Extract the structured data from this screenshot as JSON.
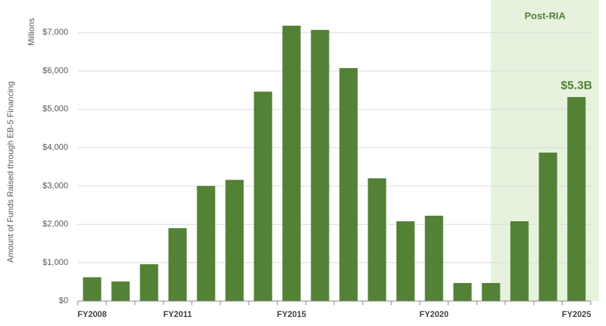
{
  "chart_data": {
    "type": "bar",
    "y_label": "Amount of Funds Raised through EB-5 Financing",
    "y_unit_label": "Millions",
    "highlight_label": "Post-RIA",
    "categories": [
      "FY2008",
      null,
      null,
      "FY2011",
      null,
      null,
      null,
      "FY2015",
      null,
      null,
      null,
      null,
      "FY2020",
      null,
      null,
      null,
      null,
      "FY2025"
    ],
    "values": [
      620,
      510,
      960,
      1900,
      3000,
      3160,
      5460,
      7180,
      7070,
      6075,
      3200,
      2080,
      2225,
      470,
      470,
      2080,
      3870,
      5320
    ],
    "value_labels": [
      null,
      null,
      null,
      null,
      null,
      null,
      null,
      null,
      null,
      null,
      null,
      null,
      null,
      null,
      null,
      null,
      null,
      "$5.3B"
    ],
    "color": "#538135",
    "highlight_color": "#e6f2dd",
    "ylim": [
      0,
      7850
    ],
    "yticks": [
      {
        "value": 0,
        "label": "$0"
      },
      {
        "value": 1000,
        "label": "$1,000"
      },
      {
        "value": 2000,
        "label": "$2,000"
      },
      {
        "value": 3000,
        "label": "$3,000"
      },
      {
        "value": 4000,
        "label": "$4,000"
      },
      {
        "value": 5000,
        "label": "$5,000"
      },
      {
        "value": 6000,
        "label": "$6,000"
      },
      {
        "value": 7000,
        "label": "$7,000"
      }
    ],
    "grid": true
  }
}
